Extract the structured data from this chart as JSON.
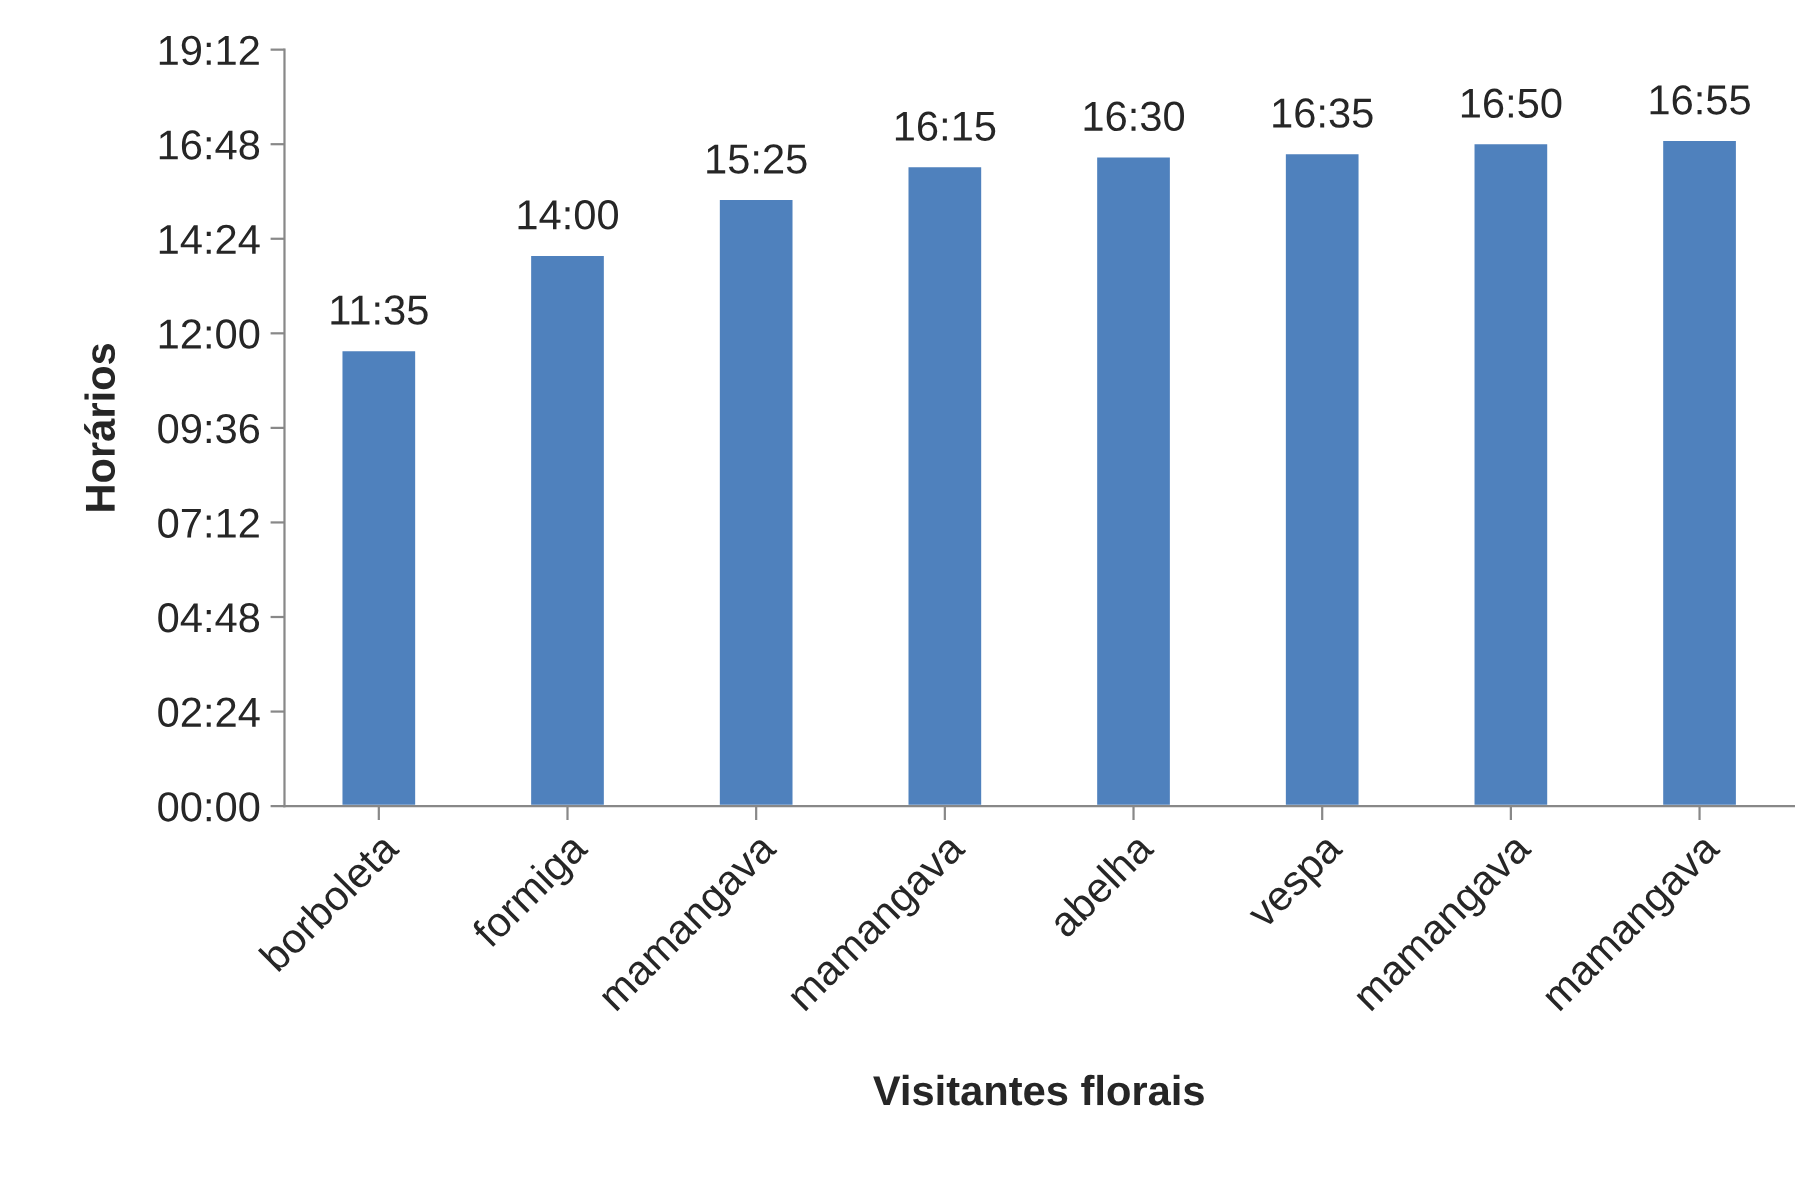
{
  "chart_data": {
    "type": "bar",
    "xlabel": "Visitantes florais",
    "ylabel": "Horários",
    "categories": [
      "borboleta",
      "formiga",
      "mamangava",
      "mamangava",
      "abelha",
      "vespa",
      "mamangava",
      "mamangava"
    ],
    "values": [
      11.583,
      14.0,
      15.417,
      16.25,
      16.5,
      16.583,
      16.833,
      16.917
    ],
    "value_labels": [
      "11:35",
      "14:00",
      "15:25",
      "16:15",
      "16:30",
      "16:35",
      "16:50",
      "16:55"
    ],
    "color": "#4f81bd",
    "ylim": [
      0,
      19.2
    ],
    "yticks": [
      {
        "value": 0,
        "label": "00:00"
      },
      {
        "value": 2.4,
        "label": "02:24"
      },
      {
        "value": 4.8,
        "label": "04:48"
      },
      {
        "value": 7.2,
        "label": "07:12"
      },
      {
        "value": 9.6,
        "label": "09:36"
      },
      {
        "value": 12,
        "label": "12:00"
      },
      {
        "value": 14.4,
        "label": "14:24"
      },
      {
        "value": 16.8,
        "label": "16:48"
      },
      {
        "value": 19.2,
        "label": "19:12"
      }
    ],
    "grid": false,
    "legend": false
  }
}
